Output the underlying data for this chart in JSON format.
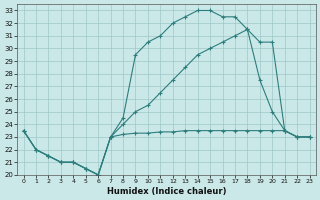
{
  "background_color": "#cbe8e8",
  "grid_color": "#afd4d4",
  "line_color": "#2d7d7d",
  "xlabel": "Humidex (Indice chaleur)",
  "xlim": [
    -0.5,
    23.5
  ],
  "ylim": [
    20,
    33.5
  ],
  "yticks": [
    20,
    21,
    22,
    23,
    24,
    25,
    26,
    27,
    28,
    29,
    30,
    31,
    32,
    33
  ],
  "xticks": [
    0,
    1,
    2,
    3,
    4,
    5,
    6,
    7,
    8,
    9,
    10,
    11,
    12,
    13,
    14,
    15,
    16,
    17,
    18,
    19,
    20,
    21,
    22,
    23
  ],
  "line1_x": [
    0,
    1,
    2,
    3,
    4,
    5,
    6,
    7,
    8,
    9,
    10,
    11,
    12,
    13,
    14,
    15,
    16,
    17,
    18,
    19,
    20,
    21,
    22,
    23
  ],
  "line1_y": [
    23.5,
    22.0,
    21.5,
    21.0,
    21.0,
    20.5,
    20.0,
    23.0,
    24.5,
    29.5,
    30.5,
    31.0,
    32.0,
    32.5,
    33.0,
    33.0,
    32.5,
    32.5,
    31.5,
    27.5,
    25.0,
    23.5,
    23.0,
    23.0
  ],
  "line2_x": [
    0,
    1,
    2,
    3,
    4,
    5,
    6,
    7,
    8,
    9,
    10,
    11,
    12,
    13,
    14,
    15,
    16,
    17,
    18,
    19,
    20,
    21,
    22,
    23
  ],
  "line2_y": [
    23.5,
    22.0,
    21.5,
    21.0,
    21.0,
    20.5,
    20.0,
    23.0,
    24.0,
    25.0,
    25.5,
    26.5,
    27.5,
    28.5,
    29.5,
    30.0,
    30.5,
    31.0,
    31.5,
    30.5,
    30.5,
    23.5,
    23.0,
    23.0
  ],
  "line3_x": [
    0,
    1,
    2,
    3,
    4,
    5,
    6,
    7,
    8,
    9,
    10,
    11,
    12,
    13,
    14,
    15,
    16,
    17,
    18,
    19,
    20,
    21,
    22,
    23
  ],
  "line3_y": [
    23.5,
    22.0,
    21.5,
    21.0,
    21.0,
    20.5,
    20.0,
    23.0,
    23.2,
    23.3,
    23.3,
    23.4,
    23.4,
    23.5,
    23.5,
    23.5,
    23.5,
    23.5,
    23.5,
    23.5,
    23.5,
    23.5,
    23.0,
    23.0
  ]
}
